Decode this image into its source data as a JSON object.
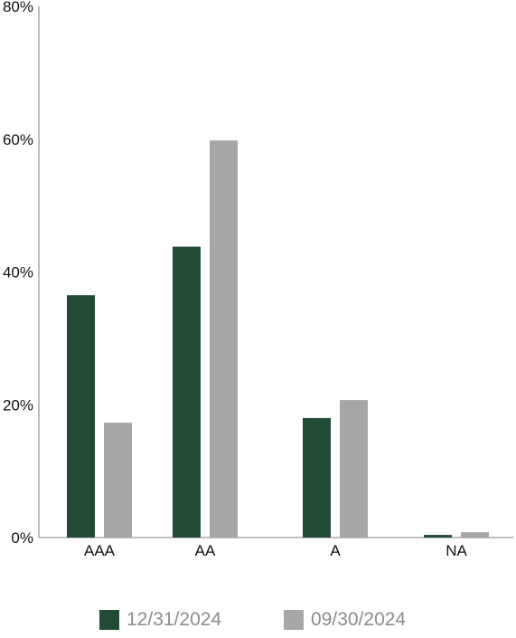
{
  "chart_data": {
    "type": "bar",
    "categories": [
      "AAA",
      "AA",
      "A",
      "NA"
    ],
    "series": [
      {
        "name": "12/31/2024",
        "color": "#224b36",
        "values": [
          36.5,
          43.8,
          18.0,
          0.4
        ]
      },
      {
        "name": "09/30/2024",
        "color": "#a6a6a6",
        "values": [
          17.3,
          59.8,
          20.7,
          0.8
        ]
      }
    ],
    "ylim": [
      0,
      80
    ],
    "yticks": [
      "0%",
      "20%",
      "40%",
      "60%",
      "80%"
    ],
    "ytick_values": [
      0,
      20,
      40,
      60,
      80
    ],
    "grid": false,
    "legend_position": "bottom"
  }
}
